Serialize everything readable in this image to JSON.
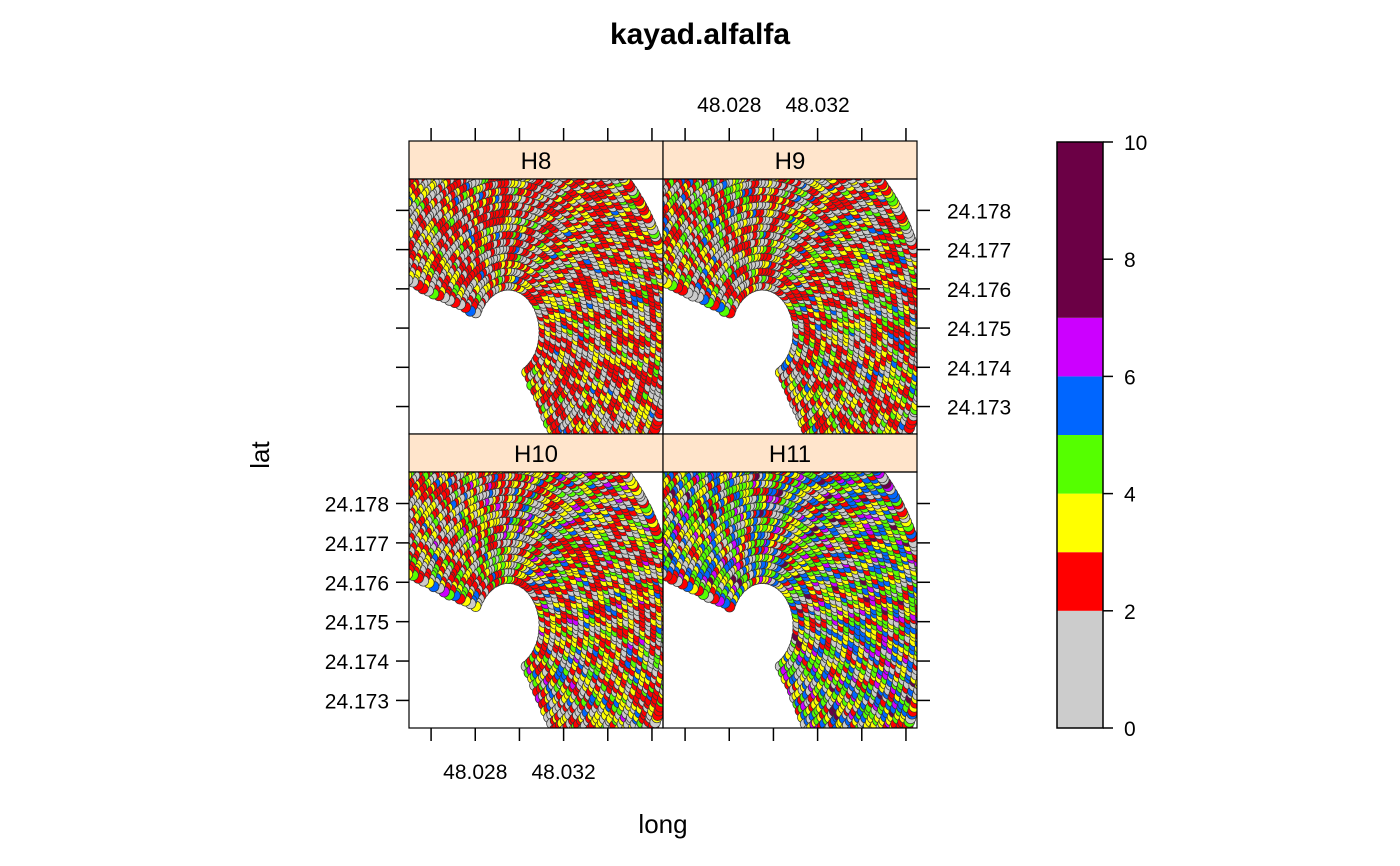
{
  "chart_data": {
    "type": "scatter",
    "title": "kayad.alfalfa",
    "xlabel": "long",
    "ylabel": "lat",
    "xlim": [
      48.025,
      48.0365
    ],
    "ylim": [
      24.1723,
      24.1788
    ],
    "x_ticks": [
      48.028,
      48.032
    ],
    "x_tick_labels": [
      "48.028",
      "48.032"
    ],
    "y_ticks": [
      24.173,
      24.174,
      24.175,
      24.176,
      24.177,
      24.178
    ],
    "y_tick_labels": [
      "24.173",
      "24.174",
      "24.175",
      "24.176",
      "24.177",
      "24.178"
    ],
    "panels": [
      {
        "label": "H8"
      },
      {
        "label": "H9"
      },
      {
        "label": "H10"
      },
      {
        "label": "H11"
      }
    ],
    "field": {
      "pivot_long": 48.0295,
      "pivot_lat": 24.1749,
      "inner_radius_deg": 0.0012,
      "outer_radius_deg": 0.0055,
      "start_angle_deg": -60,
      "end_angle_deg": 160
    },
    "colorkey": {
      "breaks": [
        0,
        2,
        3,
        4,
        5,
        6,
        7,
        10
      ],
      "colors": [
        "#cccccc",
        "#ff0000",
        "#ffff00",
        "#55ff00",
        "#0066ff",
        "#cc00ff",
        "#6b0045"
      ],
      "tick_values": [
        0,
        2,
        4,
        6,
        8,
        10
      ],
      "tick_labels": [
        "0",
        "2",
        "4",
        "6",
        "8",
        "10"
      ]
    }
  }
}
